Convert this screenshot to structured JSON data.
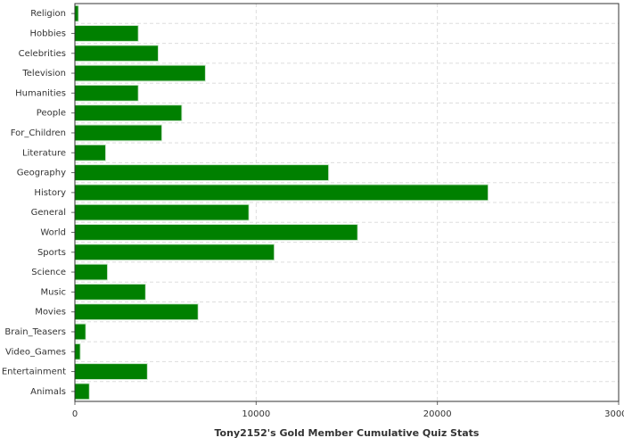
{
  "chart_data": {
    "type": "bar",
    "orientation": "horizontal",
    "title": "Tony2152's Gold Member Cumulative Quiz Stats",
    "categories": [
      "Religion",
      "Hobbies",
      "Celebrities",
      "Television",
      "Humanities",
      "People",
      "For_Children",
      "Literature",
      "Geography",
      "History",
      "General",
      "World",
      "Sports",
      "Science",
      "Music",
      "Movies",
      "Brain_Teasers",
      "Video_Games",
      "Entertainment",
      "Animals"
    ],
    "values": [
      200,
      3500,
      4600,
      7200,
      3500,
      5900,
      4800,
      1700,
      14000,
      22800,
      9600,
      15600,
      11000,
      1800,
      3900,
      6800,
      600,
      300,
      4000,
      800
    ],
    "color": "#008000",
    "xlim": [
      0,
      30000
    ],
    "xticks": [
      0,
      10000,
      20000,
      30000
    ],
    "grid": true
  }
}
